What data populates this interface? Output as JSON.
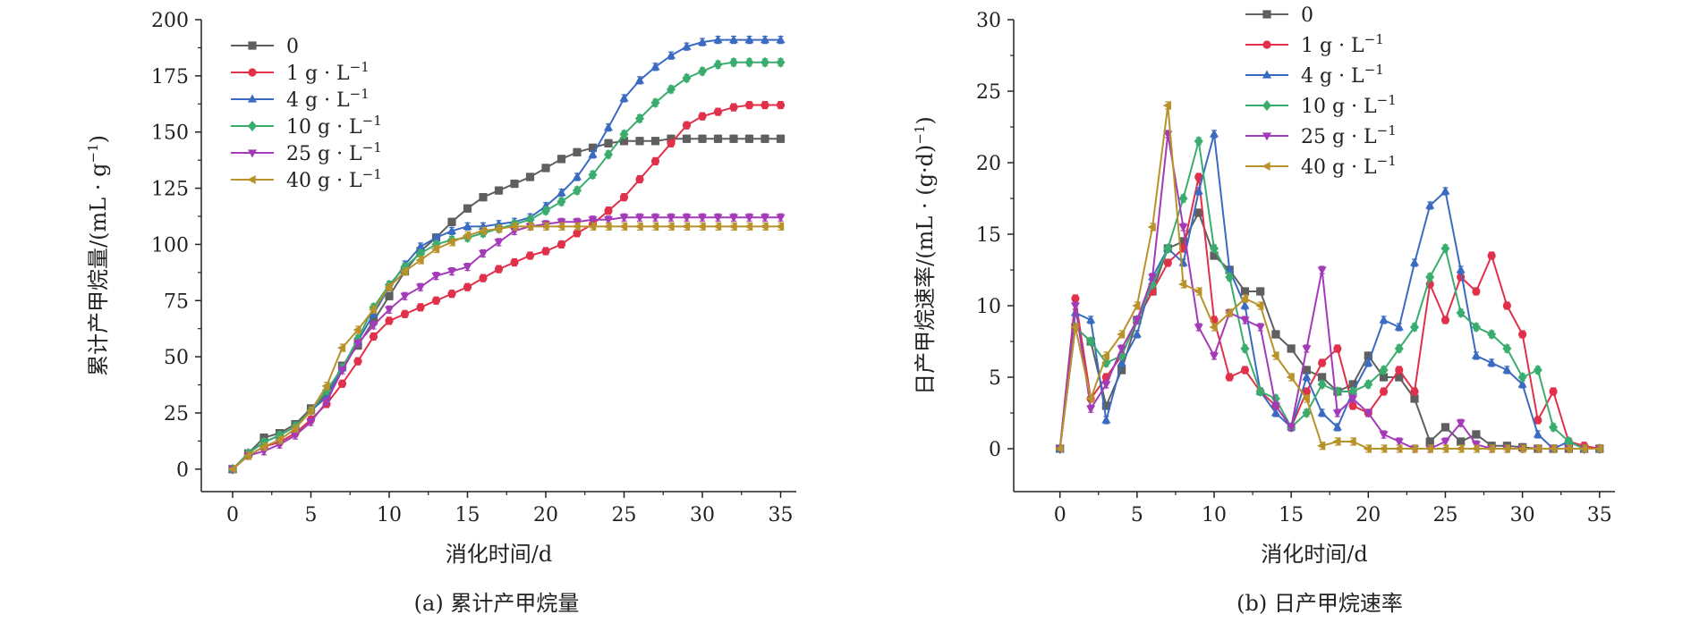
{
  "chart_data": [
    {
      "type": "line",
      "caption": "(a) 累计产甲烷量",
      "xlabel": "消化时间/d",
      "ylabel": "累计产甲烷量/(mL·g⁻¹)",
      "xlim": [
        -2,
        36
      ],
      "ylim": [
        -10,
        200
      ],
      "xticks": [
        0,
        5,
        10,
        15,
        20,
        25,
        30,
        35
      ],
      "yticks": [
        0,
        25,
        50,
        75,
        100,
        125,
        150,
        175,
        200
      ],
      "legend_position": "top-left",
      "x": [
        0,
        1,
        2,
        3,
        4,
        5,
        6,
        7,
        8,
        9,
        10,
        11,
        12,
        13,
        14,
        15,
        16,
        17,
        18,
        19,
        20,
        21,
        22,
        23,
        24,
        25,
        26,
        27,
        28,
        29,
        30,
        31,
        32,
        33,
        34,
        35
      ],
      "series": [
        {
          "name": "0",
          "color": "#5f5f5f",
          "marker": "square",
          "values": [
            0,
            7,
            14,
            16,
            20,
            27,
            33,
            46,
            55,
            66,
            77,
            88,
            97,
            103,
            110,
            116,
            121,
            124,
            127,
            130,
            134,
            138,
            141,
            143,
            145,
            146,
            146,
            146,
            147,
            147,
            147,
            147,
            147,
            147,
            147,
            147
          ]
        },
        {
          "name": "1 g·L⁻¹",
          "color": "#e0304a",
          "marker": "circle",
          "values": [
            0,
            6,
            10,
            12,
            16,
            22,
            29,
            38,
            48,
            59,
            66,
            69,
            72,
            75,
            78,
            81,
            85,
            89,
            92,
            95,
            97,
            100,
            105,
            109,
            115,
            121,
            129,
            137,
            145,
            153,
            157,
            159,
            161,
            162,
            162,
            162
          ]
        },
        {
          "name": "4 g·L⁻¹",
          "color": "#3a6bc0",
          "marker": "triangle-up",
          "values": [
            0,
            7,
            12,
            15,
            19,
            26,
            32,
            45,
            57,
            69,
            81,
            91,
            99,
            103,
            106,
            108,
            108,
            109,
            110,
            112,
            117,
            123,
            130,
            140,
            152,
            165,
            173,
            179,
            184,
            188,
            190,
            191,
            191,
            191,
            191,
            191
          ]
        },
        {
          "name": "10 g·L⁻¹",
          "color": "#3aad6e",
          "marker": "diamond",
          "values": [
            0,
            7,
            12,
            15,
            19,
            26,
            35,
            45,
            58,
            72,
            82,
            90,
            96,
            100,
            102,
            103,
            105,
            107,
            109,
            111,
            115,
            119,
            124,
            131,
            140,
            149,
            156,
            163,
            169,
            174,
            177,
            180,
            181,
            181,
            181,
            181
          ]
        },
        {
          "name": "25 g·L⁻¹",
          "color": "#a33bb8",
          "marker": "triangle-down",
          "values": [
            0,
            6,
            8,
            11,
            15,
            21,
            30,
            44,
            56,
            64,
            71,
            77,
            81,
            86,
            88,
            90,
            96,
            101,
            106,
            108,
            109,
            110,
            110,
            111,
            111,
            112,
            112,
            112,
            112,
            112,
            112,
            112,
            112,
            112,
            112,
            112
          ]
        },
        {
          "name": "40 g·L⁻¹",
          "color": "#b8922a",
          "marker": "triangle-left",
          "values": [
            0,
            6,
            10,
            13,
            18,
            26,
            37,
            54,
            62,
            71,
            81,
            88,
            93,
            98,
            101,
            104,
            106,
            107,
            108,
            108,
            108,
            108,
            108,
            108,
            108,
            108,
            108,
            108,
            108,
            108,
            108,
            108,
            108,
            108,
            108,
            108
          ]
        }
      ]
    },
    {
      "type": "line",
      "caption": "(b) 日产甲烷速率",
      "xlabel": "消化时间/d",
      "ylabel": "日产甲烷速率/(mL·(g·d)⁻¹)",
      "xlim": [
        -3,
        36
      ],
      "ylim": [
        -3,
        30
      ],
      "xticks": [
        0,
        5,
        10,
        15,
        20,
        25,
        30,
        35
      ],
      "yticks": [
        0,
        5,
        10,
        15,
        20,
        25,
        30
      ],
      "legend_position": "top-center",
      "x": [
        0,
        1,
        2,
        3,
        4,
        5,
        6,
        7,
        8,
        9,
        10,
        11,
        12,
        13,
        14,
        15,
        16,
        17,
        18,
        19,
        20,
        21,
        22,
        23,
        24,
        25,
        26,
        27,
        28,
        29,
        30,
        31,
        32,
        33,
        34,
        35
      ],
      "series": [
        {
          "name": "0",
          "color": "#5f5f5f",
          "marker": "square",
          "values": [
            0,
            8.5,
            7.5,
            3,
            5.5,
            9,
            11,
            14,
            14.5,
            16.5,
            13.5,
            12.5,
            11,
            11,
            8,
            7,
            5.5,
            5,
            4,
            4.5,
            6.5,
            5,
            5,
            3.5,
            0.5,
            1.5,
            0.5,
            1,
            0.2,
            0.2,
            0.1,
            0,
            0,
            0,
            0,
            0
          ]
        },
        {
          "name": "1 g·L⁻¹",
          "color": "#e0304a",
          "marker": "circle",
          "values": [
            0,
            10.5,
            3.5,
            5,
            6.5,
            9,
            11,
            13,
            14,
            19,
            9,
            5,
            5.5,
            4,
            3,
            1.5,
            4,
            6,
            7,
            3,
            2.5,
            4,
            5.5,
            4,
            11.5,
            9,
            12,
            11,
            13.5,
            10,
            8,
            2,
            4,
            0.5,
            0.2,
            0
          ]
        },
        {
          "name": "4 g·L⁻¹",
          "color": "#3a6bc0",
          "marker": "triangle-up",
          "values": [
            0,
            9.5,
            9,
            2,
            6,
            8,
            12,
            14,
            13,
            18,
            22,
            12.5,
            10,
            4,
            2.5,
            1.5,
            5,
            2.5,
            1.5,
            4,
            6,
            9,
            8.5,
            13,
            17,
            18,
            12.5,
            6.5,
            6,
            5.5,
            4.5,
            1,
            0,
            0.5,
            0,
            0
          ]
        },
        {
          "name": "10 g·L⁻¹",
          "color": "#3aad6e",
          "marker": "diamond",
          "values": [
            0,
            8.5,
            7.5,
            6,
            6.5,
            9,
            11.5,
            14,
            17.5,
            21.5,
            14,
            12,
            7,
            4,
            3.5,
            1.5,
            2.5,
            4.5,
            4,
            4,
            4.5,
            5.5,
            7,
            8.5,
            12,
            14,
            9.5,
            8.5,
            8,
            7,
            5,
            5.5,
            1.5,
            0.5,
            0,
            0
          ]
        },
        {
          "name": "25 g·L⁻¹",
          "color": "#a33bb8",
          "marker": "triangle-down",
          "values": [
            0,
            10,
            2.8,
            4.5,
            7,
            9,
            12,
            22,
            15.5,
            8.5,
            6.5,
            9.5,
            9,
            8.5,
            3,
            1.5,
            7,
            12.5,
            2.5,
            3.5,
            2.5,
            1,
            0.5,
            0,
            0,
            0.5,
            1.8,
            0.3,
            0,
            0,
            0,
            0,
            0,
            0,
            0,
            0
          ]
        },
        {
          "name": "40 g·L⁻¹",
          "color": "#b8922a",
          "marker": "triangle-left",
          "values": [
            0,
            8.5,
            3.5,
            6.5,
            8,
            10,
            15.5,
            24,
            11.5,
            11,
            8.5,
            9.5,
            10.5,
            10,
            6.5,
            5,
            3.5,
            0.2,
            0.5,
            0.5,
            0,
            0,
            0,
            0,
            0,
            0,
            0,
            0,
            0,
            0,
            0,
            0,
            0,
            0,
            0,
            0
          ]
        }
      ]
    }
  ]
}
